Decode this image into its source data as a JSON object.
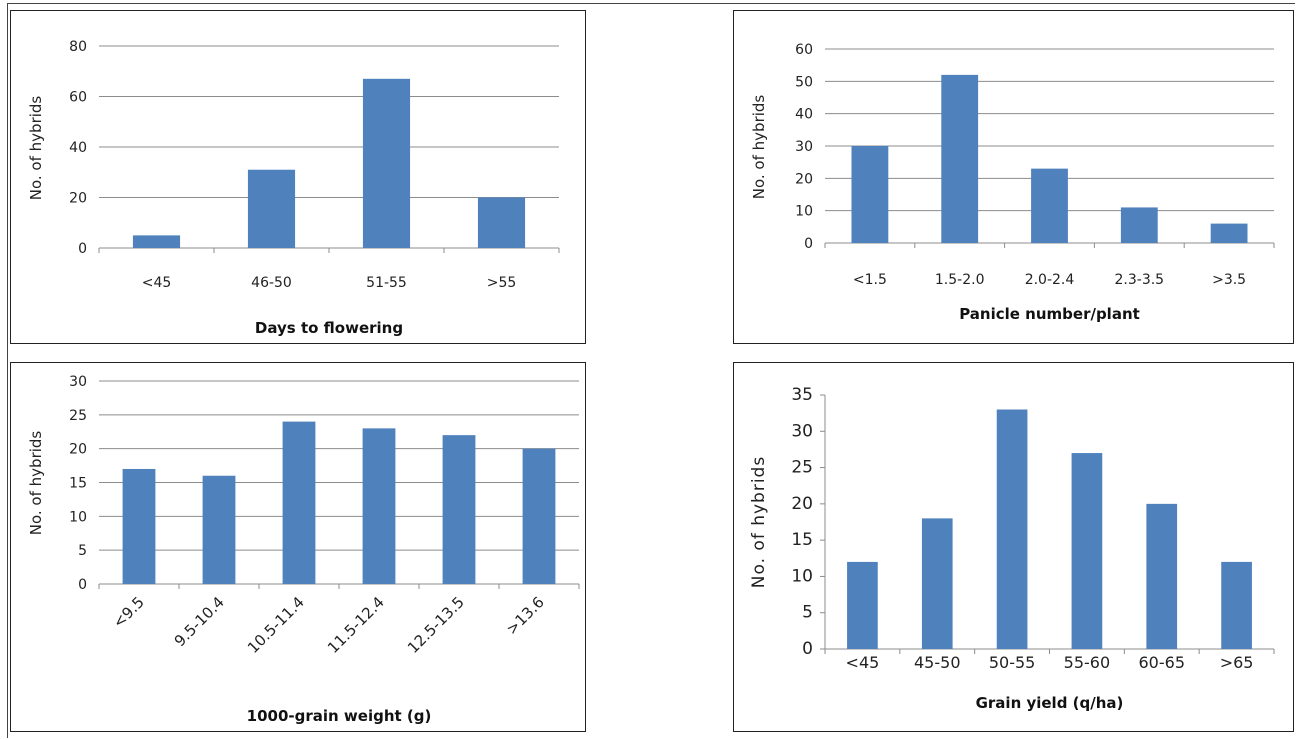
{
  "chart_data": [
    {
      "type": "bar",
      "title": "",
      "xlabel": "Days to flowering",
      "ylabel": "No. of hybrids",
      "categories": [
        "<45",
        "46-50",
        "51-55",
        ">55"
      ],
      "values": [
        5,
        31,
        67,
        20
      ],
      "ylim": [
        0,
        80
      ],
      "yticks": [
        "0",
        "20",
        "40",
        "60",
        "80"
      ],
      "grid": true,
      "legend": "none",
      "bar_color": "#4f81bd"
    },
    {
      "type": "bar",
      "title": "",
      "xlabel": "Panicle number/plant",
      "ylabel": "No. of hybrids",
      "categories": [
        "<1.5",
        "1.5-2.0",
        "2.0-2.4",
        "2.3-3.5",
        ">3.5"
      ],
      "values": [
        30,
        52,
        23,
        11,
        6
      ],
      "ylim": [
        0,
        60
      ],
      "yticks": [
        "0",
        "10",
        "20",
        "30",
        "40",
        "50",
        "60"
      ],
      "grid": true,
      "legend": "none",
      "bar_color": "#4f81bd"
    },
    {
      "type": "bar",
      "title": "",
      "xlabel": "1000-grain weight (g)",
      "ylabel": "No. of hybrids",
      "categories": [
        "<9.5",
        "9.5-10.4",
        "10.5-11.4",
        "11.5-12.4",
        "12.5-13.5",
        ">13.6"
      ],
      "values": [
        17,
        16,
        24,
        23,
        22,
        20
      ],
      "ylim": [
        0,
        30
      ],
      "yticks": [
        "0",
        "5",
        "10",
        "15",
        "20",
        "25",
        "30"
      ],
      "grid": true,
      "legend": "none",
      "tick_rotation": "-45",
      "bar_color": "#4f81bd"
    },
    {
      "type": "bar",
      "title": "",
      "xlabel": "Grain yield (q/ha)",
      "ylabel": "No. of hybrids",
      "categories": [
        "<45",
        "45-50",
        "50-55",
        "55-60",
        "60-65",
        ">65"
      ],
      "values": [
        12,
        18,
        33,
        27,
        20,
        12
      ],
      "ylim": [
        0,
        35
      ],
      "yticks": [
        "0",
        "5",
        "10",
        "15",
        "20",
        "25",
        "30",
        "35"
      ],
      "grid": false,
      "legend": "none",
      "bar_color": "#4f81bd"
    }
  ]
}
